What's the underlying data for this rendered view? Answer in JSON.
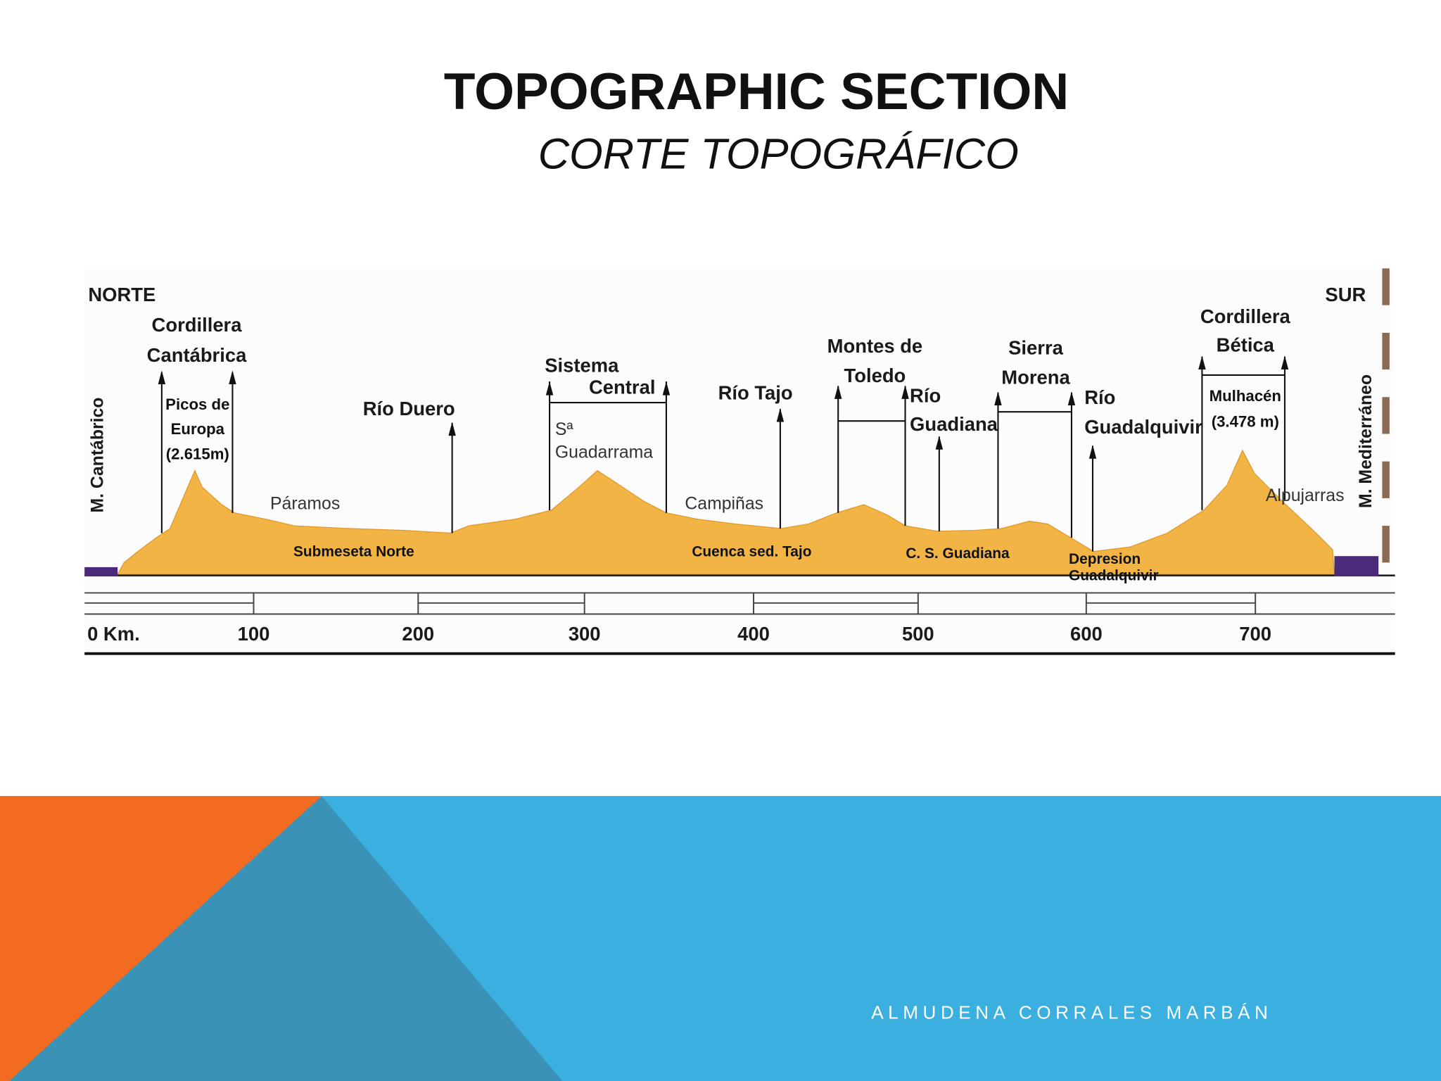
{
  "title": "TOPOGRAPHIC SECTION",
  "subtitle": "CORTE TOPOGRÁFICO",
  "diagram": {
    "labels": [
      "NORTE",
      "SUR",
      "Cordillera",
      "Cantábrica",
      "Picos de",
      "Europa",
      "(2.615m)",
      "Río Duero",
      "Páramos",
      "Sistema",
      "Central",
      "Sª",
      "Guadarrama",
      "Río Tajo",
      "Campiñas",
      "Montes de",
      "Toledo",
      "Río",
      "Guadiana",
      "Sierra",
      "Morena",
      "Río",
      "Guadalquivir",
      "Cordillera",
      "Bética",
      "Mulhacén",
      "(3.478 m)",
      "Alpujarras",
      "Submeseta Norte",
      "Cuenca sed. Tajo",
      "C. S. Guadiana",
      "Depresion",
      "Guadalquivir",
      "M. Cantábrico",
      "M. Mediterráneo"
    ],
    "scale": [
      "0 Km.",
      "100",
      "200",
      "300",
      "400",
      "500",
      "600",
      "700"
    ]
  },
  "author": "ALMUDENA CORRALES MARBÁN"
}
